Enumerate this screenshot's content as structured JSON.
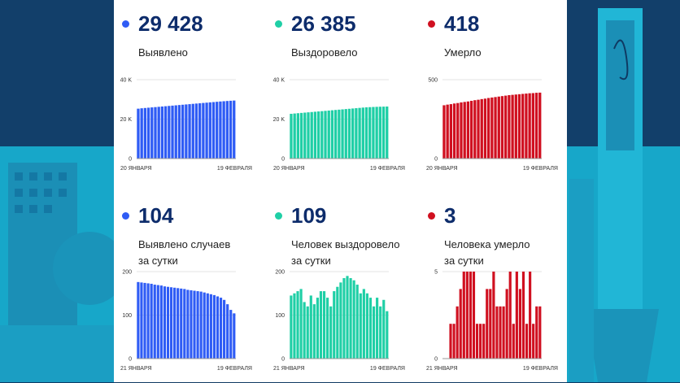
{
  "colors": {
    "blue": "#2f5cf5",
    "green": "#1fcfa6",
    "red": "#d01020",
    "value_text": "#0d2c6b"
  },
  "cards": [
    {
      "value": "29 428",
      "label": "Выявлено",
      "color": "blue"
    },
    {
      "value": "26 385",
      "label": "Выздоровело",
      "color": "green"
    },
    {
      "value": "418",
      "label": "Умерло",
      "color": "red"
    },
    {
      "value": "104",
      "label": "Выявлено случаев\nза сутки",
      "color": "blue"
    },
    {
      "value": "109",
      "label": "Человек выздоровело\nза сутки",
      "color": "green"
    },
    {
      "value": "3",
      "label": "Человека умерло\nза сутки",
      "color": "red"
    }
  ],
  "chart_data": [
    {
      "type": "bar",
      "ylim": [
        0,
        40000
      ],
      "ytick_labels": [
        "0",
        "20 K",
        "40 K"
      ],
      "yticks": [
        0,
        20000,
        40000
      ],
      "xlabels": [
        "20 ЯНВАРЯ",
        "19 ФЕВРАЛЯ"
      ],
      "color": "blue",
      "values": [
        25300,
        25500,
        25650,
        25800,
        25950,
        26100,
        26250,
        26400,
        26550,
        26700,
        26850,
        27000,
        27150,
        27300,
        27450,
        27600,
        27750,
        27900,
        28050,
        28200,
        28350,
        28500,
        28650,
        28800,
        28950,
        29080,
        29200,
        29320,
        29428
      ]
    },
    {
      "type": "bar",
      "ylim": [
        0,
        40000
      ],
      "ytick_labels": [
        "0",
        "20 K",
        "40 K"
      ],
      "yticks": [
        0,
        20000,
        40000
      ],
      "xlabels": [
        "20 ЯНВАРЯ",
        "19 ФЕВРАЛЯ"
      ],
      "color": "green",
      "values": [
        22700,
        22850,
        23000,
        23150,
        23300,
        23450,
        23600,
        23750,
        23900,
        24050,
        24200,
        24350,
        24500,
        24650,
        24800,
        24950,
        25100,
        25250,
        25400,
        25550,
        25700,
        25850,
        25980,
        26080,
        26160,
        26230,
        26290,
        26340,
        26385
      ]
    },
    {
      "type": "bar",
      "ylim": [
        0,
        500
      ],
      "ytick_labels": [
        "0",
        "500"
      ],
      "yticks": [
        0,
        500
      ],
      "xlabels": [
        "20 ЯНВАРЯ",
        "19 ФЕВРАЛЯ"
      ],
      "color": "red",
      "values": [
        338,
        342,
        345,
        349,
        352,
        356,
        359,
        362,
        366,
        370,
        373,
        377,
        380,
        384,
        387,
        390,
        393,
        396,
        399,
        402,
        404,
        406,
        408,
        410,
        412,
        414,
        415,
        417,
        418
      ]
    },
    {
      "type": "bar",
      "ylim": [
        0,
        200
      ],
      "ytick_labels": [
        "0",
        "100",
        "200"
      ],
      "yticks": [
        0,
        100,
        200
      ],
      "xlabels": [
        "21 ЯНВАРЯ",
        "19 ФЕВРАЛЯ"
      ],
      "color": "blue",
      "values": [
        176,
        175,
        174,
        173,
        172,
        170,
        169,
        168,
        166,
        165,
        164,
        163,
        162,
        161,
        160,
        158,
        157,
        156,
        155,
        154,
        152,
        150,
        148,
        146,
        143,
        140,
        135,
        125,
        112,
        104
      ]
    },
    {
      "type": "bar",
      "ylim": [
        0,
        200
      ],
      "ytick_labels": [
        "0",
        "100",
        "200"
      ],
      "yticks": [
        0,
        100,
        200
      ],
      "xlabels": [
        "21 ЯНВАРЯ",
        "19 ФЕВРАЛЯ"
      ],
      "color": "green",
      "values": [
        145,
        150,
        155,
        160,
        130,
        120,
        145,
        125,
        140,
        155,
        155,
        140,
        120,
        155,
        165,
        175,
        185,
        190,
        185,
        180,
        170,
        150,
        160,
        150,
        140,
        120,
        140,
        120,
        135,
        109
      ]
    },
    {
      "type": "bar",
      "ylim": [
        0,
        5
      ],
      "ytick_labels": [
        "0",
        "5"
      ],
      "yticks": [
        0,
        5
      ],
      "xlabels": [
        "21 ЯНВАРЯ",
        "19 ФЕВРАЛЯ"
      ],
      "color": "red",
      "values": [
        0,
        0,
        2,
        2,
        3,
        4,
        5,
        5,
        5,
        5,
        2,
        2,
        2,
        4,
        4,
        5,
        3,
        3,
        3,
        4,
        5,
        2,
        5,
        4,
        5,
        2,
        5,
        2,
        3,
        3
      ]
    }
  ]
}
